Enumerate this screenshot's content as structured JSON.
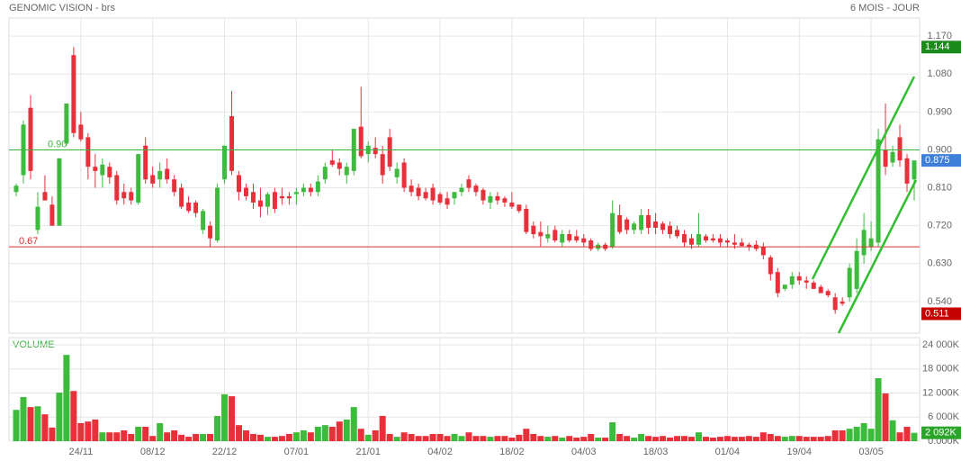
{
  "header": {
    "title": "GENOMIC VISION - brs",
    "period": "6 MOIS - JOUR"
  },
  "chart_data": [
    {
      "type": "candlestick",
      "categories": [
        null,
        null,
        null,
        null,
        null,
        null,
        null,
        null,
        null,
        "24/11",
        null,
        null,
        null,
        null,
        null,
        null,
        null,
        null,
        null,
        "08/12",
        null,
        null,
        null,
        null,
        null,
        null,
        null,
        null,
        null,
        "22/12",
        null,
        null,
        null,
        null,
        null,
        null,
        null,
        null,
        null,
        "07/01",
        null,
        null,
        null,
        null,
        null,
        null,
        null,
        null,
        null,
        "21/01",
        null,
        null,
        null,
        null,
        null,
        null,
        null,
        null,
        null,
        "04/02",
        null,
        null,
        null,
        null,
        null,
        null,
        null,
        null,
        null,
        "18/02",
        null,
        null,
        null,
        null,
        null,
        null,
        null,
        null,
        null,
        "04/03",
        null,
        null,
        null,
        null,
        null,
        null,
        null,
        null,
        null,
        "18/03",
        null,
        null,
        null,
        null,
        null,
        null,
        null,
        null,
        null,
        "01/04",
        null,
        null,
        null,
        null,
        null,
        null,
        null,
        null,
        null,
        "19/04",
        null,
        null,
        null,
        null,
        null,
        null,
        null,
        null,
        null,
        "03/05",
        null,
        null,
        null,
        null,
        null,
        null
      ],
      "open": [
        0.8,
        0.84,
        1.0,
        0.71,
        0.8,
        0.77,
        0.72,
        0.915,
        1.125,
        0.96,
        0.93,
        0.86,
        0.84,
        0.86,
        0.84,
        0.8,
        0.8,
        0.775,
        0.91,
        0.84,
        0.83,
        0.855,
        0.83,
        0.81,
        0.775,
        0.775,
        0.71,
        0.72,
        0.685,
        0.83,
        0.98,
        0.84,
        0.81,
        0.8,
        0.78,
        0.765,
        0.8,
        0.79,
        0.79,
        0.795,
        0.8,
        0.81,
        0.8,
        0.83,
        0.875,
        0.87,
        0.84,
        0.85,
        0.955,
        0.89,
        0.905,
        0.89,
        0.93,
        0.835,
        0.87,
        0.815,
        0.81,
        0.8,
        0.81,
        0.795,
        0.785,
        0.785,
        0.8,
        0.83,
        0.815,
        0.805,
        0.775,
        0.79,
        0.785,
        0.775,
        0.77,
        0.76,
        0.72,
        0.705,
        0.69,
        0.71,
        0.68,
        0.7,
        0.695,
        0.69,
        0.685,
        0.665,
        0.675,
        0.67,
        0.745,
        0.735,
        0.71,
        0.71,
        0.745,
        0.73,
        0.725,
        0.72,
        0.71,
        0.7,
        0.69,
        0.675,
        0.695,
        0.69,
        0.69,
        0.685,
        0.68,
        0.68,
        0.675,
        0.675,
        0.67,
        0.645,
        0.61,
        0.57,
        0.58,
        0.6,
        0.59,
        0.585,
        0.575,
        0.565,
        0.55,
        0.54,
        0.55,
        0.57,
        0.65,
        0.67,
        0.68,
        0.9,
        0.87,
        0.93,
        0.88,
        0.83
      ],
      "high": [
        0.82,
        0.97,
        1.03,
        0.8,
        0.84,
        0.79,
        0.88,
        1.01,
        1.144,
        0.99,
        0.94,
        0.89,
        0.88,
        0.87,
        0.85,
        0.82,
        0.81,
        0.89,
        0.93,
        0.86,
        0.87,
        0.88,
        0.84,
        0.82,
        0.79,
        0.78,
        0.76,
        0.73,
        0.82,
        0.91,
        1.04,
        0.85,
        0.82,
        0.82,
        0.81,
        0.8,
        0.81,
        0.81,
        0.8,
        0.81,
        0.82,
        0.82,
        0.84,
        0.87,
        0.9,
        0.88,
        0.87,
        0.95,
        1.05,
        0.92,
        0.93,
        0.91,
        0.95,
        0.87,
        0.88,
        0.83,
        0.82,
        0.81,
        0.82,
        0.8,
        0.8,
        0.8,
        0.82,
        0.84,
        0.82,
        0.81,
        0.8,
        0.8,
        0.79,
        0.8,
        0.77,
        0.77,
        0.73,
        0.73,
        0.72,
        0.72,
        0.71,
        0.71,
        0.71,
        0.7,
        0.69,
        0.68,
        0.68,
        0.78,
        0.77,
        0.74,
        0.73,
        0.76,
        0.76,
        0.75,
        0.73,
        0.73,
        0.72,
        0.71,
        0.7,
        0.75,
        0.7,
        0.7,
        0.7,
        0.69,
        0.7,
        0.69,
        0.68,
        0.685,
        0.68,
        0.65,
        0.62,
        0.58,
        0.61,
        0.61,
        0.6,
        0.59,
        0.58,
        0.57,
        0.56,
        0.55,
        0.63,
        0.69,
        0.75,
        0.73,
        0.95,
        1.01,
        0.91,
        0.96,
        0.89,
        0.87
      ],
      "low": [
        0.79,
        0.82,
        0.83,
        0.7,
        0.78,
        0.72,
        0.72,
        0.91,
        0.93,
        0.92,
        0.83,
        0.81,
        0.81,
        0.82,
        0.77,
        0.77,
        0.77,
        0.77,
        0.82,
        0.81,
        0.81,
        0.82,
        0.79,
        0.76,
        0.75,
        0.74,
        0.7,
        0.67,
        0.68,
        0.82,
        0.84,
        0.78,
        0.78,
        0.76,
        0.74,
        0.745,
        0.75,
        0.77,
        0.77,
        0.77,
        0.79,
        0.79,
        0.79,
        0.82,
        0.86,
        0.84,
        0.82,
        0.84,
        0.88,
        0.87,
        0.88,
        0.82,
        0.85,
        0.82,
        0.8,
        0.79,
        0.78,
        0.78,
        0.77,
        0.77,
        0.76,
        0.77,
        0.79,
        0.8,
        0.79,
        0.77,
        0.76,
        0.77,
        0.765,
        0.76,
        0.75,
        0.7,
        0.69,
        0.67,
        0.68,
        0.68,
        0.67,
        0.68,
        0.68,
        0.67,
        0.66,
        0.66,
        0.66,
        0.665,
        0.7,
        0.7,
        0.7,
        0.7,
        0.7,
        0.7,
        0.7,
        0.69,
        0.69,
        0.67,
        0.665,
        0.67,
        0.68,
        0.68,
        0.67,
        0.67,
        0.665,
        0.67,
        0.66,
        0.66,
        0.64,
        0.59,
        0.55,
        0.565,
        0.57,
        0.58,
        0.57,
        0.57,
        0.56,
        0.55,
        0.511,
        0.53,
        0.54,
        0.56,
        0.63,
        0.66,
        0.67,
        0.84,
        0.86,
        0.86,
        0.8,
        0.78
      ],
      "close": [
        0.815,
        0.96,
        0.85,
        0.765,
        0.78,
        0.72,
        0.88,
        1.01,
        0.94,
        0.925,
        0.86,
        0.85,
        0.865,
        0.835,
        0.78,
        0.785,
        0.78,
        0.89,
        0.83,
        0.82,
        0.85,
        0.83,
        0.8,
        0.765,
        0.755,
        0.75,
        0.755,
        0.69,
        0.81,
        0.91,
        0.85,
        0.8,
        0.79,
        0.775,
        0.765,
        0.795,
        0.76,
        0.785,
        0.785,
        0.8,
        0.81,
        0.8,
        0.825,
        0.86,
        0.865,
        0.855,
        0.86,
        0.95,
        0.885,
        0.91,
        0.89,
        0.84,
        0.86,
        0.855,
        0.81,
        0.8,
        0.79,
        0.785,
        0.78,
        0.775,
        0.77,
        0.8,
        0.81,
        0.81,
        0.8,
        0.78,
        0.79,
        0.78,
        0.775,
        0.765,
        0.755,
        0.705,
        0.7,
        0.695,
        0.7,
        0.685,
        0.7,
        0.685,
        0.685,
        0.68,
        0.665,
        0.675,
        0.665,
        0.75,
        0.705,
        0.71,
        0.725,
        0.745,
        0.715,
        0.715,
        0.71,
        0.7,
        0.695,
        0.68,
        0.675,
        0.7,
        0.685,
        0.685,
        0.68,
        0.68,
        0.675,
        0.672,
        0.67,
        0.665,
        0.65,
        0.605,
        0.56,
        0.58,
        0.6,
        0.59,
        0.585,
        0.57,
        0.56,
        0.555,
        0.52,
        0.535,
        0.62,
        0.66,
        0.71,
        0.69,
        0.925,
        0.86,
        0.895,
        0.875,
        0.82,
        0.875
      ],
      "up_color": "#3dbb3d",
      "down_color": "#e8303a",
      "ylim": [
        0.465,
        1.213
      ],
      "yticks": [
        {
          "value": 1.17,
          "label": "1.170"
        },
        {
          "value": 1.08,
          "label": "1.080"
        },
        {
          "value": 0.99,
          "label": "0.990"
        },
        {
          "value": 0.9,
          "label": "0.900"
        },
        {
          "value": 0.81,
          "label": "0.810"
        },
        {
          "value": 0.72,
          "label": "0.720"
        },
        {
          "value": 0.63,
          "label": "0.630"
        },
        {
          "value": 0.54,
          "label": "0.540"
        }
      ],
      "grid": true,
      "levels": [
        {
          "value": 0.9,
          "label": "0.90",
          "color": "#3cb43c"
        },
        {
          "value": 0.67,
          "label": "0.67",
          "color": "#d9302f"
        }
      ],
      "markers": [
        {
          "value": 1.144,
          "label": "1.144",
          "color": "#1b8c1b"
        },
        {
          "value": 0.875,
          "label": "0.875",
          "color": "#3d7fd9"
        },
        {
          "value": 0.511,
          "label": "0.511",
          "color": "#c40000"
        }
      ]
    },
    {
      "type": "bar",
      "title": "VOLUME",
      "values": [
        7800,
        11000,
        8500,
        8700,
        6700,
        3400,
        12100,
        21500,
        12500,
        4500,
        4900,
        5400,
        2200,
        2200,
        2200,
        2700,
        1800,
        3600,
        3600,
        1300,
        4500,
        2200,
        2700,
        1600,
        1100,
        1800,
        1800,
        1800,
        6300,
        11700,
        11200,
        4000,
        2700,
        1800,
        1600,
        1100,
        1100,
        1300,
        1800,
        2200,
        2700,
        2200,
        3600,
        4000,
        3600,
        4900,
        5400,
        8500,
        3100,
        1600,
        2700,
        6300,
        1800,
        1100,
        2200,
        1800,
        1300,
        1300,
        1800,
        1800,
        1300,
        1800,
        1300,
        2200,
        1300,
        1300,
        1100,
        1300,
        1300,
        900,
        1600,
        3100,
        1800,
        1300,
        1100,
        1300,
        900,
        1300,
        900,
        1100,
        1800,
        900,
        900,
        4700,
        1800,
        1300,
        900,
        1800,
        1300,
        1100,
        1300,
        900,
        1300,
        1300,
        1100,
        2200,
        1100,
        900,
        1100,
        1300,
        1100,
        1100,
        1300,
        1100,
        2200,
        1800,
        1300,
        1100,
        1300,
        1300,
        1100,
        1100,
        1100,
        1300,
        2700,
        2700,
        3100,
        3600,
        4500,
        3100,
        15700,
        11900,
        5200,
        2200,
        3600,
        2092
      ],
      "ylim": [
        0,
        25800
      ],
      "yticks": [
        {
          "value": 24000,
          "label": "24 000K"
        },
        {
          "value": 18000,
          "label": "18 000K"
        },
        {
          "value": 12000,
          "label": "12 000K"
        },
        {
          "value": 6000,
          "label": "6 000K"
        },
        {
          "value": 0,
          "label": "0.000K"
        }
      ],
      "grid": true,
      "markers": [
        {
          "value": 2092,
          "label": "2 092K",
          "color": "#2aa52a"
        }
      ]
    }
  ]
}
